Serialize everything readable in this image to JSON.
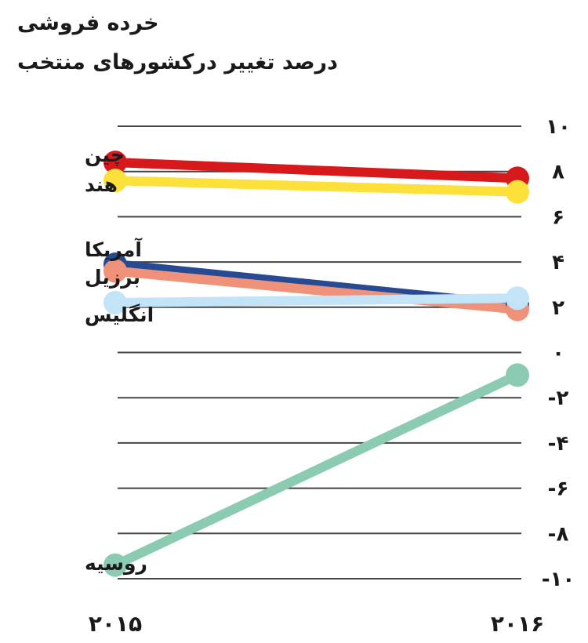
{
  "chart_data": {
    "type": "line",
    "title": "خرده فروشی",
    "subtitle": "درصد تغییر درکشورهای منتخب",
    "xlabel": "",
    "ylabel": "",
    "categories": [
      "۲۰۱۵",
      "۲۰۱۶"
    ],
    "ylim": [
      -10,
      10
    ],
    "yticks": [
      10,
      8,
      6,
      4,
      2,
      0,
      -2,
      -4,
      -6,
      -8,
      -10
    ],
    "ytick_labels": [
      "۱۰",
      "۸",
      "۶",
      "۴",
      "۲",
      "۰",
      "-۲",
      "-۴",
      "-۶",
      "-۸",
      "-۱۰"
    ],
    "grid": true,
    "legend": "inline-left",
    "series": [
      {
        "name": "چین",
        "color": "#d7191c",
        "values": [
          8.4,
          7.7
        ]
      },
      {
        "name": "هند",
        "color": "#fde03a",
        "values": [
          7.6,
          7.1
        ]
      },
      {
        "name": "آمریکا",
        "color": "#274b93",
        "values": [
          3.9,
          2.1
        ]
      },
      {
        "name": "برزیل",
        "color": "#f0927a",
        "values": [
          3.6,
          1.9
        ]
      },
      {
        "name": "انگلیس",
        "color": "#c3e3f7",
        "values": [
          2.2,
          2.4
        ]
      },
      {
        "name": "روسیه",
        "color": "#8acbb2",
        "values": [
          -9.4,
          -1.0
        ]
      }
    ]
  }
}
